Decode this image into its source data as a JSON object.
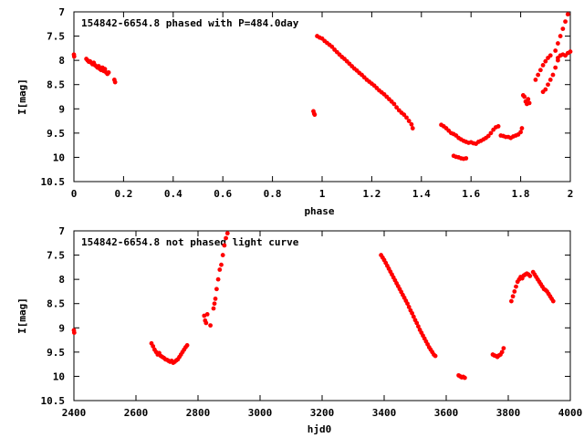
{
  "chart_data": [
    {
      "type": "scatter",
      "title": "154842-6654.8 phased with P=484.0day",
      "xlabel": "phase",
      "ylabel": "I[mag]",
      "xlim": [
        0,
        2
      ],
      "ylim": [
        7,
        10.5
      ],
      "y_inverted": true,
      "grid": false,
      "x_ticks": [
        "0",
        "0.2",
        "0.4",
        "0.6",
        "0.8",
        "1",
        "1.2",
        "1.4",
        "1.6",
        "1.8",
        "2"
      ],
      "y_ticks": [
        "7",
        "7.5",
        "8",
        "8.5",
        "9",
        "9.5",
        "10",
        "10.5"
      ],
      "marker_color": "#ff0000",
      "series": [
        {
          "points": [
            [
              0.0,
              7.88
            ],
            [
              0.001,
              7.92
            ],
            [
              0.05,
              7.97
            ],
            [
              0.055,
              8.0
            ],
            [
              0.06,
              8.03
            ],
            [
              0.065,
              8.02
            ],
            [
              0.07,
              8.05
            ],
            [
              0.075,
              8.08
            ],
            [
              0.08,
              8.05
            ],
            [
              0.085,
              8.1
            ],
            [
              0.09,
              8.12
            ],
            [
              0.095,
              8.15
            ],
            [
              0.1,
              8.12
            ],
            [
              0.105,
              8.18
            ],
            [
              0.11,
              8.2
            ],
            [
              0.115,
              8.15
            ],
            [
              0.12,
              8.22
            ],
            [
              0.125,
              8.18
            ],
            [
              0.13,
              8.25
            ],
            [
              0.135,
              8.28
            ],
            [
              0.14,
              8.25
            ],
            [
              0.163,
              8.4
            ],
            [
              0.166,
              8.45
            ],
            [
              0.965,
              9.05
            ],
            [
              0.968,
              9.1
            ],
            [
              0.97,
              9.12
            ],
            [
              0.98,
              7.5
            ],
            [
              0.99,
              7.53
            ],
            [
              1.0,
              7.55
            ],
            [
              1.01,
              7.6
            ],
            [
              1.02,
              7.64
            ],
            [
              1.03,
              7.68
            ],
            [
              1.04,
              7.72
            ],
            [
              1.05,
              7.78
            ],
            [
              1.06,
              7.83
            ],
            [
              1.07,
              7.88
            ],
            [
              1.08,
              7.93
            ],
            [
              1.09,
              7.97
            ],
            [
              1.1,
              8.02
            ],
            [
              1.11,
              8.07
            ],
            [
              1.12,
              8.12
            ],
            [
              1.13,
              8.17
            ],
            [
              1.14,
              8.21
            ],
            [
              1.15,
              8.26
            ],
            [
              1.16,
              8.3
            ],
            [
              1.17,
              8.35
            ],
            [
              1.18,
              8.4
            ],
            [
              1.19,
              8.44
            ],
            [
              1.2,
              8.48
            ],
            [
              1.21,
              8.52
            ],
            [
              1.22,
              8.57
            ],
            [
              1.23,
              8.62
            ],
            [
              1.24,
              8.66
            ],
            [
              1.25,
              8.7
            ],
            [
              1.26,
              8.75
            ],
            [
              1.27,
              8.8
            ],
            [
              1.28,
              8.85
            ],
            [
              1.29,
              8.9
            ],
            [
              1.3,
              8.97
            ],
            [
              1.31,
              9.03
            ],
            [
              1.32,
              9.08
            ],
            [
              1.33,
              9.12
            ],
            [
              1.34,
              9.18
            ],
            [
              1.35,
              9.25
            ],
            [
              1.36,
              9.32
            ],
            [
              1.365,
              9.4
            ],
            [
              1.48,
              9.33
            ],
            [
              1.49,
              9.36
            ],
            [
              1.5,
              9.4
            ],
            [
              1.51,
              9.45
            ],
            [
              1.52,
              9.5
            ],
            [
              1.53,
              9.52
            ],
            [
              1.54,
              9.55
            ],
            [
              1.55,
              9.6
            ],
            [
              1.56,
              9.63
            ],
            [
              1.57,
              9.66
            ],
            [
              1.58,
              9.68
            ],
            [
              1.59,
              9.7
            ],
            [
              1.6,
              9.69
            ],
            [
              1.61,
              9.71
            ],
            [
              1.62,
              9.72
            ],
            [
              1.63,
              9.68
            ],
            [
              1.64,
              9.66
            ],
            [
              1.65,
              9.63
            ],
            [
              1.66,
              9.6
            ],
            [
              1.67,
              9.56
            ],
            [
              1.68,
              9.5
            ],
            [
              1.69,
              9.43
            ],
            [
              1.7,
              9.38
            ],
            [
              1.71,
              9.36
            ],
            [
              1.53,
              9.97
            ],
            [
              1.54,
              9.99
            ],
            [
              1.55,
              10.0
            ],
            [
              1.56,
              10.02
            ],
            [
              1.57,
              10.03
            ],
            [
              1.58,
              10.02
            ],
            [
              1.72,
              9.55
            ],
            [
              1.73,
              9.56
            ],
            [
              1.74,
              9.58
            ],
            [
              1.75,
              9.58
            ],
            [
              1.76,
              9.6
            ],
            [
              1.77,
              9.57
            ],
            [
              1.78,
              9.55
            ],
            [
              1.79,
              9.53
            ],
            [
              1.8,
              9.48
            ],
            [
              1.805,
              9.4
            ],
            [
              1.81,
              8.72
            ],
            [
              1.815,
              8.75
            ],
            [
              1.82,
              8.85
            ],
            [
              1.825,
              8.9
            ],
            [
              1.83,
              8.8
            ],
            [
              1.835,
              8.88
            ],
            [
              1.86,
              8.4
            ],
            [
              1.87,
              8.3
            ],
            [
              1.88,
              8.2
            ],
            [
              1.89,
              8.1
            ],
            [
              1.9,
              8.02
            ],
            [
              1.91,
              7.95
            ],
            [
              1.92,
              7.9
            ],
            [
              1.89,
              8.65
            ],
            [
              1.9,
              8.6
            ],
            [
              1.91,
              8.5
            ],
            [
              1.92,
              8.4
            ],
            [
              1.93,
              8.3
            ],
            [
              1.94,
              8.15
            ],
            [
              1.95,
              8.0
            ],
            [
              1.94,
              7.8
            ],
            [
              1.95,
              7.65
            ],
            [
              1.96,
              7.5
            ],
            [
              1.97,
              7.35
            ],
            [
              1.98,
              7.2
            ],
            [
              1.99,
              7.05
            ],
            [
              1.95,
              7.95
            ],
            [
              1.96,
              7.9
            ],
            [
              1.97,
              7.88
            ],
            [
              1.98,
              7.9
            ],
            [
              1.99,
              7.85
            ],
            [
              2.0,
              7.82
            ]
          ]
        }
      ]
    },
    {
      "type": "scatter",
      "title": "154842-6654.8 not phased light curve",
      "xlabel": "hjd0",
      "ylabel": "I[mag]",
      "xlim": [
        2400,
        4000
      ],
      "ylim": [
        7,
        10.5
      ],
      "y_inverted": true,
      "grid": false,
      "x_ticks": [
        "2400",
        "2600",
        "2800",
        "3000",
        "3200",
        "3400",
        "3600",
        "3800",
        "4000"
      ],
      "y_ticks": [
        "7",
        "7.5",
        "8",
        "8.5",
        "9",
        "9.5",
        "10",
        "10.5"
      ],
      "marker_color": "#ff0000",
      "series": [
        {
          "points": [
            [
              2400,
              9.05
            ],
            [
              2401,
              9.1
            ],
            [
              2650,
              9.32
            ],
            [
              2655,
              9.38
            ],
            [
              2660,
              9.45
            ],
            [
              2665,
              9.5
            ],
            [
              2670,
              9.55
            ],
            [
              2675,
              9.52
            ],
            [
              2680,
              9.58
            ],
            [
              2685,
              9.6
            ],
            [
              2690,
              9.62
            ],
            [
              2695,
              9.65
            ],
            [
              2700,
              9.66
            ],
            [
              2705,
              9.68
            ],
            [
              2710,
              9.7
            ],
            [
              2715,
              9.68
            ],
            [
              2720,
              9.72
            ],
            [
              2725,
              9.7
            ],
            [
              2730,
              9.67
            ],
            [
              2735,
              9.65
            ],
            [
              2740,
              9.6
            ],
            [
              2745,
              9.55
            ],
            [
              2750,
              9.5
            ],
            [
              2755,
              9.45
            ],
            [
              2760,
              9.4
            ],
            [
              2765,
              9.36
            ],
            [
              2820,
              8.75
            ],
            [
              2823,
              8.85
            ],
            [
              2826,
              8.9
            ],
            [
              2830,
              8.72
            ],
            [
              2840,
              8.95
            ],
            [
              2850,
              8.6
            ],
            [
              2853,
              8.5
            ],
            [
              2856,
              8.4
            ],
            [
              2860,
              8.2
            ],
            [
              2865,
              8.0
            ],
            [
              2870,
              7.8
            ],
            [
              2875,
              7.7
            ],
            [
              2880,
              7.5
            ],
            [
              2885,
              7.3
            ],
            [
              2890,
              7.15
            ],
            [
              2895,
              7.05
            ],
            [
              3390,
              7.5
            ],
            [
              3395,
              7.55
            ],
            [
              3400,
              7.6
            ],
            [
              3405,
              7.66
            ],
            [
              3410,
              7.72
            ],
            [
              3415,
              7.78
            ],
            [
              3420,
              7.84
            ],
            [
              3425,
              7.9
            ],
            [
              3430,
              7.96
            ],
            [
              3435,
              8.02
            ],
            [
              3440,
              8.08
            ],
            [
              3445,
              8.14
            ],
            [
              3450,
              8.2
            ],
            [
              3455,
              8.26
            ],
            [
              3460,
              8.32
            ],
            [
              3465,
              8.38
            ],
            [
              3470,
              8.44
            ],
            [
              3475,
              8.5
            ],
            [
              3480,
              8.57
            ],
            [
              3485,
              8.64
            ],
            [
              3490,
              8.7
            ],
            [
              3495,
              8.77
            ],
            [
              3500,
              8.84
            ],
            [
              3505,
              8.9
            ],
            [
              3510,
              8.97
            ],
            [
              3515,
              9.04
            ],
            [
              3520,
              9.1
            ],
            [
              3525,
              9.16
            ],
            [
              3530,
              9.22
            ],
            [
              3535,
              9.28
            ],
            [
              3540,
              9.34
            ],
            [
              3545,
              9.4
            ],
            [
              3550,
              9.45
            ],
            [
              3555,
              9.5
            ],
            [
              3560,
              9.55
            ],
            [
              3565,
              9.58
            ],
            [
              3640,
              9.98
            ],
            [
              3645,
              10.0
            ],
            [
              3650,
              10.02
            ],
            [
              3655,
              10.01
            ],
            [
              3660,
              10.03
            ],
            [
              3750,
              9.55
            ],
            [
              3755,
              9.57
            ],
            [
              3760,
              9.58
            ],
            [
              3765,
              9.6
            ],
            [
              3770,
              9.57
            ],
            [
              3775,
              9.55
            ],
            [
              3780,
              9.5
            ],
            [
              3785,
              9.42
            ],
            [
              3810,
              8.45
            ],
            [
              3815,
              8.35
            ],
            [
              3820,
              8.25
            ],
            [
              3825,
              8.15
            ],
            [
              3830,
              8.05
            ],
            [
              3835,
              8.0
            ],
            [
              3840,
              7.95
            ],
            [
              3845,
              7.98
            ],
            [
              3850,
              7.92
            ],
            [
              3855,
              7.9
            ],
            [
              3860,
              7.88
            ],
            [
              3865,
              7.9
            ],
            [
              3870,
              7.93
            ],
            [
              3880,
              7.85
            ],
            [
              3885,
              7.9
            ],
            [
              3890,
              7.95
            ],
            [
              3895,
              8.0
            ],
            [
              3900,
              8.05
            ],
            [
              3905,
              8.1
            ],
            [
              3910,
              8.15
            ],
            [
              3915,
              8.2
            ],
            [
              3920,
              8.22
            ],
            [
              3925,
              8.25
            ],
            [
              3930,
              8.3
            ],
            [
              3935,
              8.35
            ],
            [
              3940,
              8.4
            ],
            [
              3945,
              8.45
            ]
          ]
        }
      ]
    }
  ]
}
